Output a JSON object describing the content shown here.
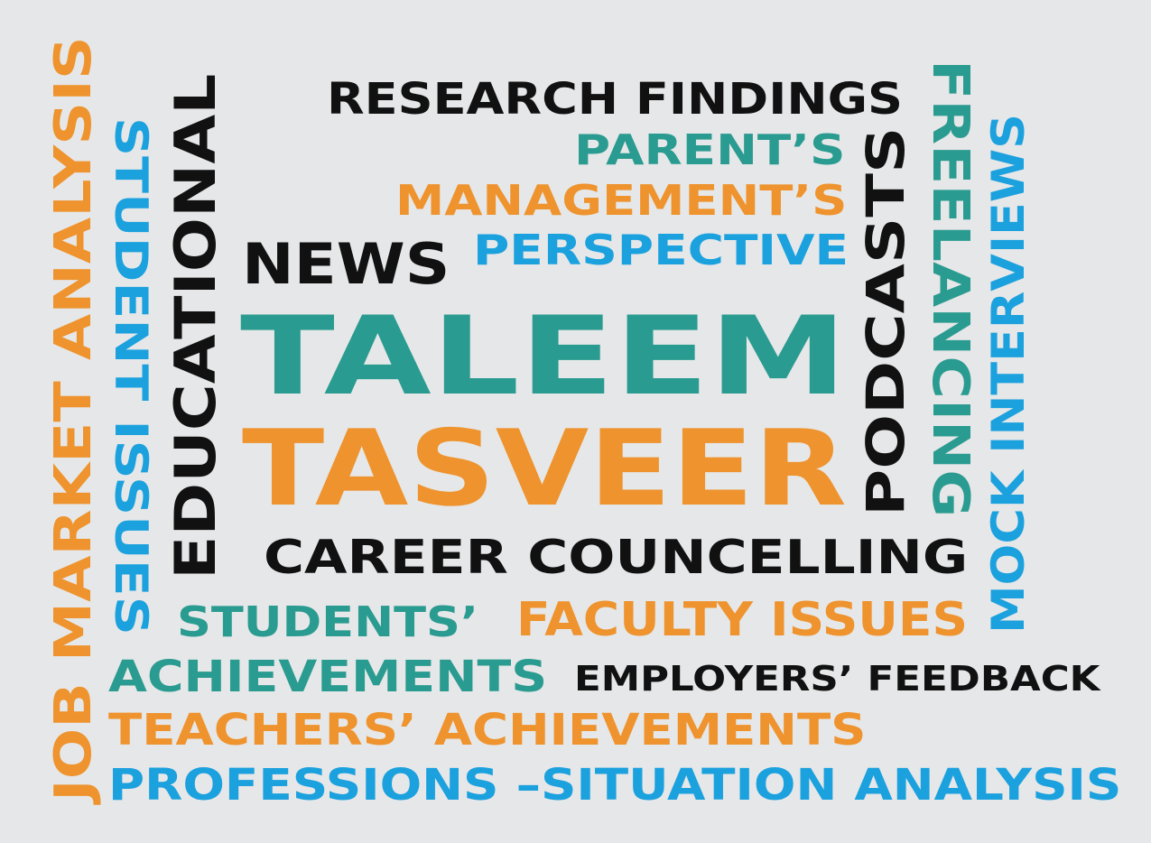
{
  "colors": {
    "background": "#e6e7e8",
    "black": "#111111",
    "teal": "#2a9b90",
    "orange": "#ee932d",
    "blue": "#1ba1de"
  },
  "words": {
    "research_findings": "RESEARCH FINDINGS",
    "parents": "PARENT’S",
    "managements": "MANAGEMENT’S",
    "news": "NEWS",
    "perspective": "PERSPECTIVE",
    "taleem": "TALEEM",
    "tasveer": "TASVEER",
    "career_councelling": "CAREER COUNCELLING",
    "students": "STUDENTS’",
    "faculty_issues": "FACULTY ISSUES",
    "achievements": "ACHIEVEMENTS",
    "employers_feedback": "EMPLOYERS’ FEEDBACK",
    "teachers_achievements": "TEACHERS’ ACHIEVEMENTS",
    "professions_situation_analysis": "PROFESSIONS –SITUATION ANALYSIS",
    "job_market_analysis": "JOB MARKET ANALYSIS",
    "student_issues": "STUDENT ISSUES",
    "educational": "EDUCATIONAL",
    "podcasts": "PODCASTS",
    "freelancing": "FREELANCING",
    "mock_interviews": "MOCK INTERVIEWS"
  }
}
